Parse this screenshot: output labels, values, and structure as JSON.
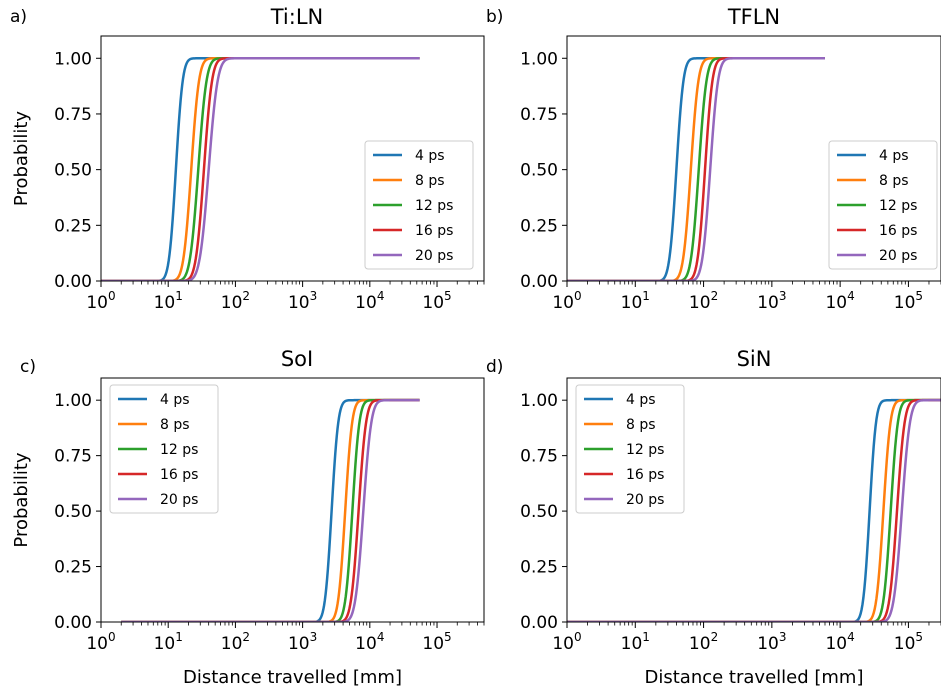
{
  "chart_data": [
    {
      "type": "line",
      "panel_label": "a)",
      "title": "Ti:LN",
      "xlabel": "",
      "ylabel": "Probability",
      "xscale": "log",
      "xlim": [
        1,
        500000
      ],
      "ylim": [
        0,
        1.1
      ],
      "xticks": [
        "10^0",
        "10^1",
        "10^2",
        "10^3",
        "10^4",
        "10^5"
      ],
      "yticks": [
        "0.00",
        "0.25",
        "0.50",
        "0.75",
        "1.00"
      ],
      "legend_position": "center-right",
      "x_range": [
        1,
        55000
      ],
      "series": [
        {
          "name": "4 ps",
          "color": "#1f77b4",
          "x50": 13,
          "x_full": 21
        },
        {
          "name": "8 ps",
          "color": "#ff7f0e",
          "x50": 22,
          "x_full": 38
        },
        {
          "name": "12 ps",
          "color": "#2ca02c",
          "x50": 28,
          "x_full": 50
        },
        {
          "name": "16 ps",
          "color": "#d62728",
          "x50": 34,
          "x_full": 60
        },
        {
          "name": "20 ps",
          "color": "#9467bd",
          "x50": 40,
          "x_full": 75
        }
      ]
    },
    {
      "type": "line",
      "panel_label": "b)",
      "title": "TFLN",
      "xlabel": "",
      "ylabel": "",
      "xscale": "log",
      "xlim": [
        1,
        300000
      ],
      "ylim": [
        0,
        1.1
      ],
      "xticks": [
        "10^0",
        "10^1",
        "10^2",
        "10^3",
        "10^4",
        "10^5"
      ],
      "yticks": [
        "0.00",
        "0.25",
        "0.50",
        "0.75",
        "1.00"
      ],
      "legend_position": "center-right",
      "x_range": [
        1,
        6000
      ],
      "series": [
        {
          "name": "4 ps",
          "color": "#1f77b4",
          "x50": 40,
          "x_full": 65
        },
        {
          "name": "8 ps",
          "color": "#ff7f0e",
          "x50": 65,
          "x_full": 110
        },
        {
          "name": "12 ps",
          "color": "#2ca02c",
          "x50": 85,
          "x_full": 145
        },
        {
          "name": "16 ps",
          "color": "#d62728",
          "x50": 105,
          "x_full": 175
        },
        {
          "name": "20 ps",
          "color": "#9467bd",
          "x50": 125,
          "x_full": 215
        }
      ]
    },
    {
      "type": "line",
      "panel_label": "c)",
      "title": "SoI",
      "xlabel": "Distance travelled [mm]",
      "ylabel": "Probability",
      "xscale": "log",
      "xlim": [
        1,
        500000
      ],
      "ylim": [
        0,
        1.1
      ],
      "xticks": [
        "10^0",
        "10^1",
        "10^2",
        "10^3",
        "10^4",
        "10^5"
      ],
      "yticks": [
        "0.00",
        "0.25",
        "0.50",
        "0.75",
        "1.00"
      ],
      "legend_position": "upper-left",
      "x_range": [
        2,
        55000
      ],
      "series": [
        {
          "name": "4 ps",
          "color": "#1f77b4",
          "x50": 2700,
          "x_full": 4300
        },
        {
          "name": "8 ps",
          "color": "#ff7f0e",
          "x50": 4300,
          "x_full": 7000
        },
        {
          "name": "12 ps",
          "color": "#2ca02c",
          "x50": 5500,
          "x_full": 9000
        },
        {
          "name": "16 ps",
          "color": "#d62728",
          "x50": 6800,
          "x_full": 11500
        },
        {
          "name": "20 ps",
          "color": "#9467bd",
          "x50": 8000,
          "x_full": 14000
        }
      ]
    },
    {
      "type": "line",
      "panel_label": "d)",
      "title": "SiN",
      "xlabel": "Distance travelled [mm]",
      "ylabel": "",
      "xscale": "log",
      "xlim": [
        1,
        300000
      ],
      "ylim": [
        0,
        1.1
      ],
      "xticks": [
        "10^0",
        "10^1",
        "10^2",
        "10^3",
        "10^4",
        "10^5"
      ],
      "yticks": [
        "0.00",
        "0.25",
        "0.50",
        "0.75",
        "1.00"
      ],
      "legend_position": "upper-left",
      "x_range": [
        1,
        300000
      ],
      "series": [
        {
          "name": "4 ps",
          "color": "#1f77b4",
          "x50": 27000,
          "x_full": 42000
        },
        {
          "name": "8 ps",
          "color": "#ff7f0e",
          "x50": 43000,
          "x_full": 70000
        },
        {
          "name": "12 ps",
          "color": "#2ca02c",
          "x50": 55000,
          "x_full": 90000
        },
        {
          "name": "16 ps",
          "color": "#d62728",
          "x50": 68000,
          "x_full": 115000
        },
        {
          "name": "20 ps",
          "color": "#9467bd",
          "x50": 80000,
          "x_full": 140000
        }
      ]
    }
  ]
}
